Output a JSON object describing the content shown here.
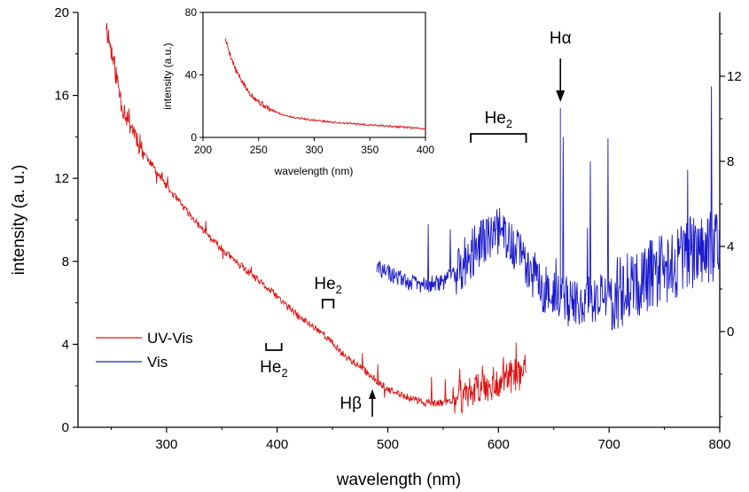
{
  "chart_data": [
    {
      "type": "line",
      "xlabel": "wavelength (nm)",
      "ylabel": "intensity (a. u.)",
      "xlim": [
        220,
        800
      ],
      "ylim": [
        0,
        20
      ],
      "xticks": [
        300,
        400,
        500,
        600,
        700,
        800
      ],
      "yticks": [
        0,
        4,
        8,
        12,
        16,
        20
      ],
      "y2lim": [
        -4.5,
        15
      ],
      "y2ticks": [
        0,
        4,
        8,
        12
      ],
      "grid": false,
      "legend": "bottom-left",
      "colors": {
        "uv": "#dd1111",
        "vis": "#1a1acc"
      },
      "series": [
        {
          "name": "UV-Vis",
          "axis": "left",
          "x": [
            245,
            260,
            280,
            300,
            320,
            340,
            360,
            380,
            400,
            420,
            440,
            460,
            480,
            500,
            520,
            540,
            560,
            580,
            600,
            620,
            625
          ],
          "values": [
            19.5,
            15.5,
            13.2,
            11.6,
            10.3,
            9.1,
            8.1,
            7.2,
            6.3,
            5.3,
            4.6,
            3.5,
            2.7,
            1.8,
            1.4,
            1.1,
            1.3,
            1.9,
            2.2,
            2.6,
            2.7
          ]
        },
        {
          "name": "Vis",
          "axis": "right",
          "x": [
            490,
            510,
            530,
            550,
            560,
            580,
            600,
            620,
            640,
            660,
            680,
            700,
            720,
            740,
            760,
            780,
            800
          ],
          "values": [
            3.0,
            2.5,
            2.2,
            2.3,
            2.8,
            3.9,
            4.8,
            3.6,
            2.1,
            1.4,
            1.4,
            1.6,
            2.2,
            2.9,
            3.3,
            3.8,
            4.2
          ]
        }
      ],
      "annotations": [
        {
          "text": "H",
          "greek": "α",
          "x": 656,
          "kind": "arrow-down"
        },
        {
          "text": "H",
          "greek": "β",
          "x": 486,
          "kind": "arrow-up"
        },
        {
          "text": "He",
          "sub": "2",
          "x_range": [
            575,
            625
          ],
          "kind": "bracket-down",
          "axis": "right"
        },
        {
          "text": "He",
          "sub": "2",
          "x_range": [
            441,
            451
          ],
          "kind": "bracket-down",
          "axis": "left"
        },
        {
          "text": "He",
          "sub": "2",
          "x_range": [
            390,
            404
          ],
          "kind": "bracket-up",
          "axis": "left"
        }
      ]
    },
    {
      "type": "line",
      "role": "inset",
      "xlabel": "wavelength (nm)",
      "ylabel": "intensity (a.u.)",
      "xlim": [
        200,
        400
      ],
      "ylim": [
        0,
        80
      ],
      "xticks": [
        200,
        250,
        300,
        350,
        400
      ],
      "yticks": [
        0,
        40,
        80
      ],
      "series": [
        {
          "x": [
            220,
            225,
            230,
            240,
            250,
            260,
            270,
            280,
            300,
            320,
            340,
            360,
            380,
            400
          ],
          "values": [
            63,
            52,
            42,
            30,
            23,
            18,
            15,
            13,
            11,
            9.5,
            8.5,
            7.5,
            6.5,
            5.5
          ]
        }
      ]
    }
  ]
}
